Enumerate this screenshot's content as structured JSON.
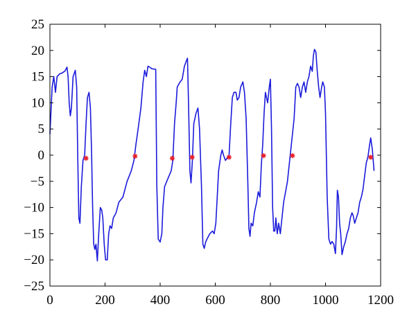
{
  "chart_data": {
    "type": "line",
    "title": "",
    "xlabel": "",
    "ylabel": "",
    "xlim": [
      0,
      1200
    ],
    "ylim": [
      -25,
      25
    ],
    "xticks": [
      0,
      200,
      400,
      600,
      800,
      1000,
      1200
    ],
    "yticks": [
      -25,
      -20,
      -15,
      -10,
      -5,
      0,
      5,
      10,
      15,
      20,
      25
    ],
    "grid": false,
    "legend": "none",
    "colors": {
      "line": "#1a1adb",
      "marker": "#e8202a",
      "axes": "#000000"
    },
    "series": [
      {
        "style": "line",
        "points": [
          [
            0,
            4
          ],
          [
            8,
            13
          ],
          [
            14,
            15
          ],
          [
            20,
            12
          ],
          [
            26,
            15
          ],
          [
            35,
            15.5
          ],
          [
            45,
            15.7
          ],
          [
            55,
            16.1
          ],
          [
            62,
            16.8
          ],
          [
            66,
            15
          ],
          [
            70,
            10
          ],
          [
            74,
            7.5
          ],
          [
            78,
            9
          ],
          [
            84,
            15
          ],
          [
            92,
            16.2
          ],
          [
            97,
            13
          ],
          [
            101,
            0
          ],
          [
            105,
            -12
          ],
          [
            109,
            -13
          ],
          [
            114,
            -6
          ],
          [
            120,
            -1
          ],
          [
            126,
            0
          ],
          [
            131,
            6
          ],
          [
            136,
            11
          ],
          [
            142,
            12
          ],
          [
            147,
            9
          ],
          [
            151,
            1
          ],
          [
            155,
            -10
          ],
          [
            159,
            -17
          ],
          [
            163,
            -18
          ],
          [
            167,
            -17
          ],
          [
            172,
            -20.2
          ],
          [
            177,
            -15
          ],
          [
            183,
            -10
          ],
          [
            188,
            -10.5
          ],
          [
            192,
            -12
          ],
          [
            197,
            -17
          ],
          [
            202,
            -20
          ],
          [
            208,
            -20
          ],
          [
            213,
            -15
          ],
          [
            218,
            -13.5
          ],
          [
            224,
            -14
          ],
          [
            230,
            -12
          ],
          [
            240,
            -11
          ],
          [
            250,
            -9
          ],
          [
            265,
            -8
          ],
          [
            280,
            -5
          ],
          [
            295,
            -3
          ],
          [
            305,
            -1
          ],
          [
            312,
            2
          ],
          [
            320,
            5
          ],
          [
            330,
            9
          ],
          [
            338,
            14
          ],
          [
            344,
            16.2
          ],
          [
            350,
            15
          ],
          [
            356,
            17
          ],
          [
            362,
            16.8
          ],
          [
            370,
            16.5
          ],
          [
            384,
            16.4
          ],
          [
            388,
            -6
          ],
          [
            393,
            -16
          ],
          [
            400,
            -16.6
          ],
          [
            406,
            -15
          ],
          [
            410,
            -10
          ],
          [
            416,
            -6
          ],
          [
            424,
            -5
          ],
          [
            432,
            -4
          ],
          [
            440,
            -3
          ],
          [
            446,
            -1
          ],
          [
            452,
            6
          ],
          [
            458,
            10
          ],
          [
            462,
            13
          ],
          [
            470,
            13.8
          ],
          [
            480,
            14.5
          ],
          [
            488,
            17
          ],
          [
            495,
            18
          ],
          [
            499,
            18.5
          ],
          [
            503,
            10
          ],
          [
            508,
            -3
          ],
          [
            512,
            -5.3
          ],
          [
            517,
            -1
          ],
          [
            522,
            6
          ],
          [
            530,
            8
          ],
          [
            537,
            9
          ],
          [
            543,
            5
          ],
          [
            550,
            -6
          ],
          [
            555,
            -17
          ],
          [
            560,
            -17.8
          ],
          [
            565,
            -16.6
          ],
          [
            570,
            -16
          ],
          [
            580,
            -15
          ],
          [
            590,
            -14.5
          ],
          [
            596,
            -15
          ],
          [
            602,
            -13
          ],
          [
            607,
            -8
          ],
          [
            612,
            -3
          ],
          [
            620,
            0
          ],
          [
            625,
            1
          ],
          [
            630,
            0
          ],
          [
            637,
            -1
          ],
          [
            644,
            -0.5
          ],
          [
            650,
            0
          ],
          [
            656,
            6
          ],
          [
            662,
            11
          ],
          [
            668,
            12
          ],
          [
            675,
            12
          ],
          [
            680,
            10.5
          ],
          [
            686,
            11
          ],
          [
            692,
            13
          ],
          [
            700,
            14
          ],
          [
            706,
            12
          ],
          [
            712,
            7
          ],
          [
            718,
            -5
          ],
          [
            722,
            -14
          ],
          [
            726,
            -15.5
          ],
          [
            730,
            -13
          ],
          [
            736,
            -13.5
          ],
          [
            742,
            -11
          ],
          [
            750,
            -9
          ],
          [
            756,
            -7
          ],
          [
            762,
            -8
          ],
          [
            767,
            -2
          ],
          [
            772,
            2
          ],
          [
            777,
            8
          ],
          [
            782,
            12
          ],
          [
            790,
            10
          ],
          [
            796,
            13
          ],
          [
            800,
            14.5
          ],
          [
            804,
            5
          ],
          [
            808,
            -10
          ],
          [
            812,
            -14.5
          ],
          [
            816,
            -14.5
          ],
          [
            820,
            -12
          ],
          [
            825,
            -15
          ],
          [
            830,
            -13
          ],
          [
            836,
            -15
          ],
          [
            842,
            -12
          ],
          [
            848,
            -9
          ],
          [
            855,
            -7
          ],
          [
            862,
            -5
          ],
          [
            868,
            -2
          ],
          [
            874,
            1
          ],
          [
            880,
            4
          ],
          [
            886,
            7
          ],
          [
            892,
            13
          ],
          [
            898,
            13.7
          ],
          [
            904,
            13
          ],
          [
            910,
            11
          ],
          [
            916,
            13
          ],
          [
            922,
            14
          ],
          [
            928,
            12
          ],
          [
            934,
            14
          ],
          [
            940,
            15
          ],
          [
            946,
            17
          ],
          [
            952,
            16
          ],
          [
            956,
            19
          ],
          [
            960,
            20.2
          ],
          [
            965,
            19.7
          ],
          [
            970,
            16
          ],
          [
            975,
            13
          ],
          [
            980,
            11
          ],
          [
            986,
            13
          ],
          [
            990,
            14
          ],
          [
            996,
            13
          ],
          [
            1000,
            8
          ],
          [
            1006,
            -8
          ],
          [
            1012,
            -16
          ],
          [
            1018,
            -17
          ],
          [
            1024,
            -16.5
          ],
          [
            1030,
            -17
          ],
          [
            1036,
            -18.8
          ],
          [
            1040,
            -14
          ],
          [
            1043,
            -6.7
          ],
          [
            1047,
            -8
          ],
          [
            1051,
            -13
          ],
          [
            1055,
            -15
          ],
          [
            1060,
            -19
          ],
          [
            1066,
            -17.5
          ],
          [
            1072,
            -16.5
          ],
          [
            1078,
            -15
          ],
          [
            1084,
            -14
          ],
          [
            1090,
            -12
          ],
          [
            1096,
            -11
          ],
          [
            1100,
            -11.5
          ],
          [
            1106,
            -13
          ],
          [
            1112,
            -12
          ],
          [
            1118,
            -11
          ],
          [
            1124,
            -9
          ],
          [
            1130,
            -8
          ],
          [
            1136,
            -6.5
          ],
          [
            1142,
            -4
          ],
          [
            1148,
            -1.5
          ],
          [
            1154,
            -0.3
          ],
          [
            1160,
            2
          ],
          [
            1164,
            3.3
          ],
          [
            1170,
            1
          ],
          [
            1176,
            -3
          ]
        ]
      },
      {
        "style": "markers",
        "marker": "*",
        "points": [
          [
            131,
            -0.6
          ],
          [
            309,
            -0.2
          ],
          [
            444,
            -0.6
          ],
          [
            516,
            -0.4
          ],
          [
            650,
            -0.4
          ],
          [
            775,
            -0.1
          ],
          [
            880,
            -0.1
          ],
          [
            1164,
            -0.4
          ]
        ]
      }
    ]
  }
}
